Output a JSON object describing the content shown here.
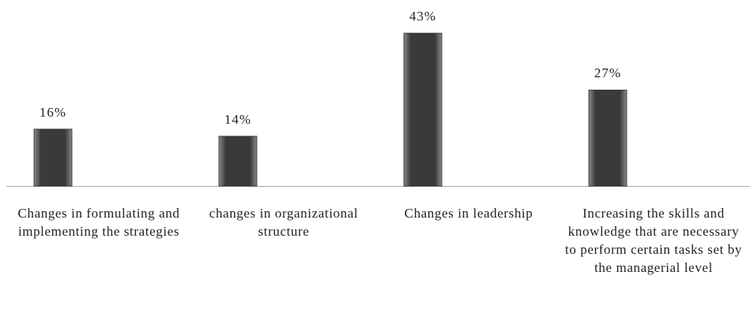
{
  "chart_data": {
    "type": "bar",
    "categories": [
      "Changes in formulating and implementing the strategies",
      "changes in organizational structure",
      "Changes in leadership",
      "Increasing the skills and knowledge that are necessary to perform certain tasks set by the managerial level"
    ],
    "values": [
      16,
      14,
      43,
      27
    ],
    "value_labels": [
      "16%",
      "14%",
      "43%",
      "27%"
    ],
    "color": "#3a3a3a"
  }
}
